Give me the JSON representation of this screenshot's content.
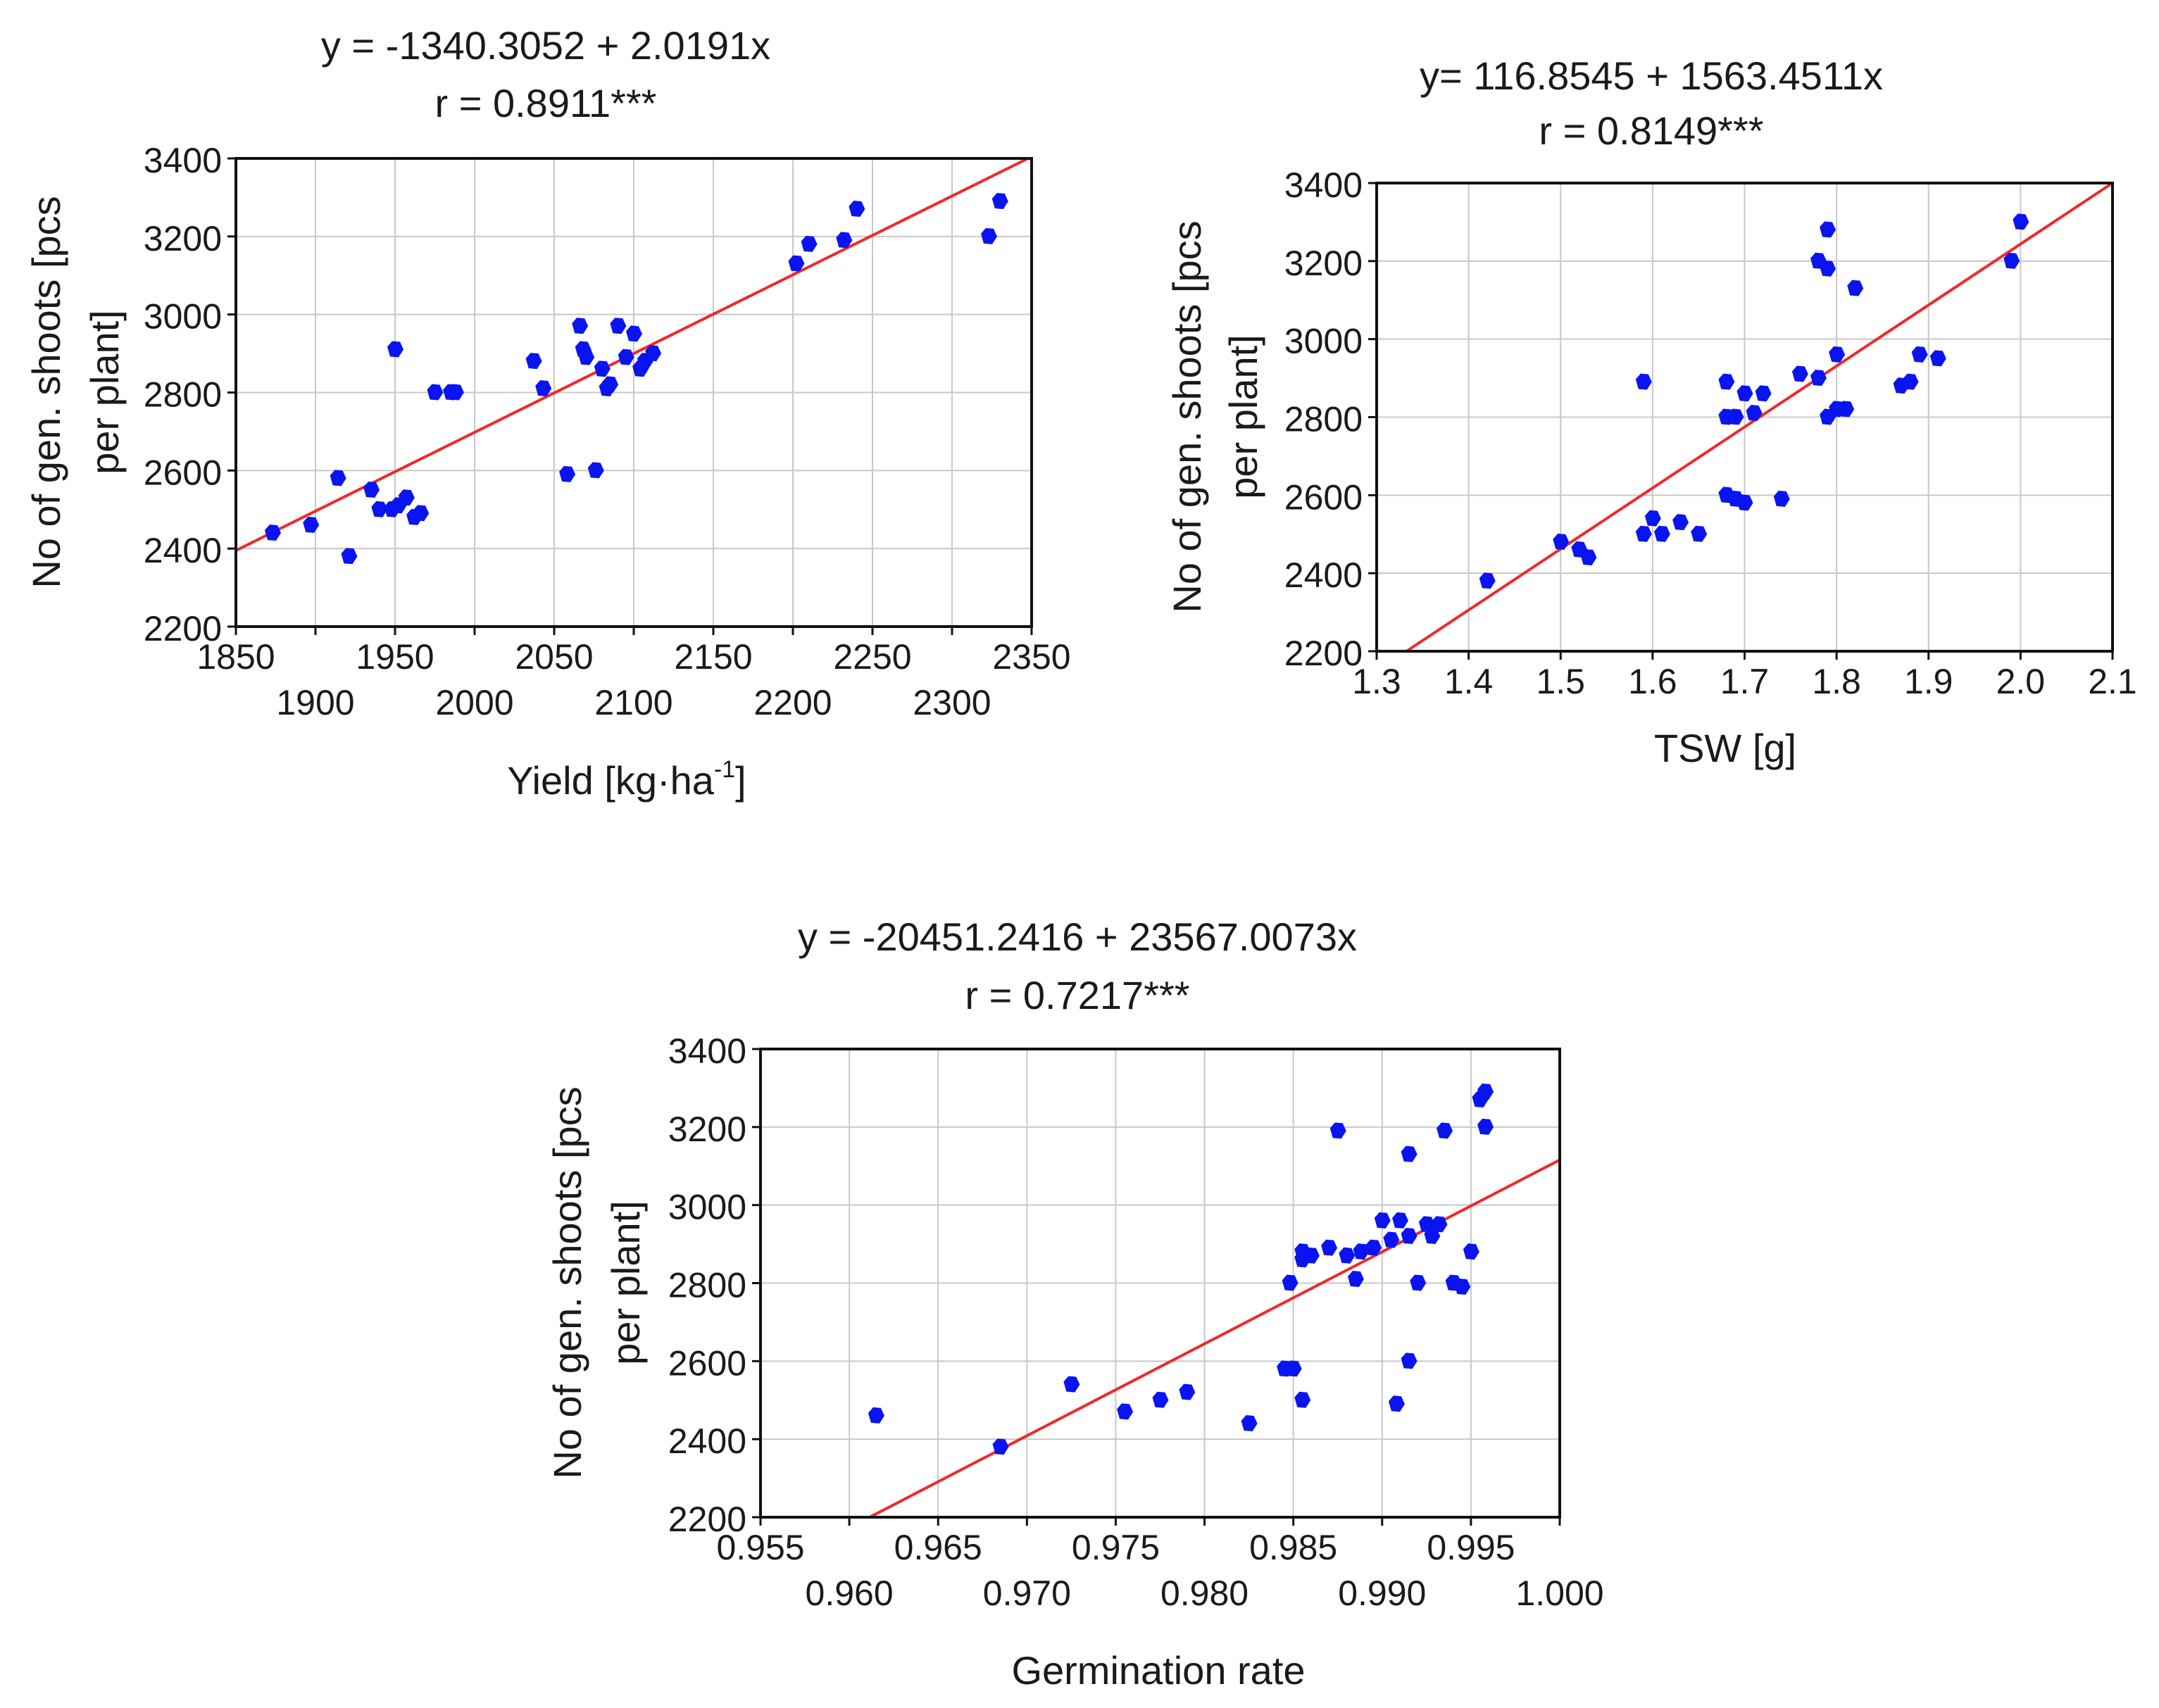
{
  "colors": {
    "points": "#0a14f0",
    "fit_line": "#ee2a2a",
    "grid": "#c8c8c8",
    "frame": "#111111",
    "text": "#1a1a1a"
  },
  "chart_data": [
    {
      "type": "scatter",
      "equation": "y = -1340.3052 + 2.0191x",
      "correlation": "r = 0.8911***",
      "xlabel": "Yield [kg·ha",
      "xlabel_sup": "-1",
      "xlabel_end": "]",
      "ylabel_line1": "No of gen. shoots [pcs",
      "ylabel_line2": "per plant]",
      "xlim": [
        1850,
        2350
      ],
      "ylim": [
        2200,
        3400
      ],
      "x_ticks_upper": [
        "1850",
        "1950",
        "2050",
        "2150",
        "2250",
        "2350"
      ],
      "x_ticks_lower": [
        "1900",
        "2000",
        "2100",
        "2200",
        "2300"
      ],
      "y_ticks": [
        "2200",
        "2400",
        "2600",
        "2800",
        "3000",
        "3200",
        "3400"
      ],
      "grid": true,
      "fit": {
        "intercept": -1340.3052,
        "slope": 2.0191
      },
      "x": [
        1873,
        1897,
        1914,
        1921,
        1935,
        1940,
        1948,
        1950,
        1952,
        1957,
        1962,
        1966,
        1975,
        1985,
        1988,
        2037,
        2043,
        2058,
        2066,
        2068,
        2070,
        2076,
        2080,
        2083,
        2085,
        2090,
        2095,
        2100,
        2104,
        2107,
        2112,
        2202,
        2210,
        2232,
        2240,
        2323,
        2330
      ],
      "y": [
        2440,
        2460,
        2580,
        2380,
        2550,
        2500,
        2500,
        2910,
        2510,
        2530,
        2480,
        2490,
        2800,
        2800,
        2800,
        2880,
        2810,
        2590,
        2970,
        2910,
        2890,
        2600,
        2860,
        2810,
        2820,
        2970,
        2890,
        2950,
        2860,
        2880,
        2900,
        3130,
        3180,
        3190,
        3270,
        3200,
        3290
      ]
    },
    {
      "type": "scatter",
      "equation": "y= 116.8545 + 1563.4511x",
      "correlation": "r = 0.8149***",
      "xlabel": "TSW [g]",
      "ylabel_line1": "No of gen. shoots [pcs",
      "ylabel_line2": "per plant]",
      "xlim": [
        1.3,
        2.1
      ],
      "ylim": [
        2200,
        3400
      ],
      "x_ticks": [
        "1.3",
        "1.4",
        "1.5",
        "1.6",
        "1.7",
        "1.8",
        "1.9",
        "2.0",
        "2.1"
      ],
      "y_ticks": [
        "2200",
        "2400",
        "2600",
        "2800",
        "3000",
        "3200",
        "3400"
      ],
      "grid": true,
      "fit": {
        "intercept": 116.8545,
        "slope": 1563.4511
      },
      "x": [
        1.42,
        1.5,
        1.52,
        1.53,
        1.59,
        1.59,
        1.6,
        1.61,
        1.63,
        1.65,
        1.68,
        1.68,
        1.69,
        1.7,
        1.71,
        1.68,
        1.69,
        1.7,
        1.72,
        1.74,
        1.76,
        1.78,
        1.78,
        1.79,
        1.79,
        1.79,
        1.8,
        1.8,
        1.81,
        1.82,
        1.87,
        1.88,
        1.89,
        1.91,
        1.99,
        2.0
      ],
      "y": [
        2380,
        2480,
        2460,
        2440,
        2890,
        2500,
        2540,
        2500,
        2530,
        2500,
        2600,
        2800,
        2800,
        2860,
        2810,
        2890,
        2590,
        2580,
        2860,
        2590,
        2910,
        2900,
        3200,
        3180,
        3280,
        2800,
        2960,
        2820,
        2820,
        3130,
        2880,
        2890,
        2960,
        2950,
        3200,
        3300
      ]
    },
    {
      "type": "scatter",
      "equation": "y = -20451.2416 + 23567.0073x",
      "correlation": "r = 0.7217***",
      "xlabel": "Germination rate",
      "ylabel_line1": "No of gen. shoots [pcs",
      "ylabel_line2": "per plant]",
      "xlim": [
        0.955,
        1.0
      ],
      "ylim": [
        2200,
        3400
      ],
      "x_ticks_upper": [
        "0.955",
        "0.965",
        "0.975",
        "0.985",
        "0.995"
      ],
      "x_ticks_lower": [
        "0.960",
        "0.970",
        "0.980",
        "0.990",
        "1.000"
      ],
      "y_ticks": [
        "2200",
        "2400",
        "2600",
        "2800",
        "3000",
        "3200",
        "3400"
      ],
      "grid": true,
      "fit": {
        "intercept": -20451.2416,
        "slope": 23567.0073
      },
      "x": [
        0.9615,
        0.9685,
        0.9725,
        0.9755,
        0.9775,
        0.979,
        0.9825,
        0.9845,
        0.985,
        0.9855,
        0.9855,
        0.9848,
        0.9855,
        0.986,
        0.987,
        0.988,
        0.9885,
        0.9888,
        0.9895,
        0.99,
        0.9905,
        0.991,
        0.9915,
        0.992,
        0.9925,
        0.9928,
        0.9932,
        0.9935,
        0.9915,
        0.9908,
        0.994,
        0.9945,
        0.995,
        0.9955,
        0.9958,
        0.9958,
        0.9915,
        0.9875
      ],
      "y": [
        2460,
        2380,
        2540,
        2470,
        2500,
        2520,
        2440,
        2580,
        2580,
        2500,
        2860,
        2800,
        2880,
        2870,
        2890,
        2870,
        2810,
        2880,
        2890,
        2960,
        2910,
        2960,
        2920,
        2800,
        2950,
        2920,
        2950,
        3190,
        3130,
        2490,
        2800,
        2790,
        2880,
        3270,
        3290,
        3200,
        2600,
        3190
      ]
    }
  ]
}
